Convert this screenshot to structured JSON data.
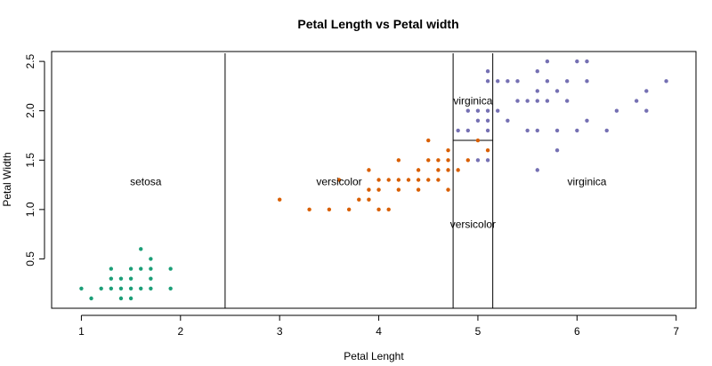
{
  "chart_data": {
    "type": "scatter",
    "title": "Petal Length vs Petal width",
    "xlabel": "Petal Lenght",
    "ylabel": "Petal Width",
    "xlim": [
      0.7,
      7.2
    ],
    "ylim": [
      0.0,
      2.6
    ],
    "x_ticks": [
      "1",
      "2",
      "3",
      "4",
      "5",
      "6",
      "7"
    ],
    "y_ticks": [
      "0.5",
      "1.0",
      "1.5",
      "2.0",
      "2.5"
    ],
    "grid": false,
    "legend": "none",
    "series": [
      {
        "color": "#1b9e77",
        "points": [
          [
            1.0,
            0.2
          ],
          [
            1.1,
            0.1
          ],
          [
            1.2,
            0.2
          ],
          [
            1.3,
            0.2
          ],
          [
            1.3,
            0.3
          ],
          [
            1.3,
            0.4
          ],
          [
            1.4,
            0.1
          ],
          [
            1.4,
            0.2
          ],
          [
            1.4,
            0.3
          ],
          [
            1.5,
            0.1
          ],
          [
            1.5,
            0.2
          ],
          [
            1.5,
            0.3
          ],
          [
            1.5,
            0.4
          ],
          [
            1.6,
            0.2
          ],
          [
            1.6,
            0.4
          ],
          [
            1.6,
            0.6
          ],
          [
            1.7,
            0.2
          ],
          [
            1.7,
            0.3
          ],
          [
            1.7,
            0.4
          ],
          [
            1.7,
            0.5
          ],
          [
            1.9,
            0.2
          ],
          [
            1.9,
            0.4
          ]
        ]
      },
      {
        "color": "#d95f02",
        "points": [
          [
            3.0,
            1.1
          ],
          [
            3.3,
            1.0
          ],
          [
            3.5,
            1.0
          ],
          [
            3.6,
            1.3
          ],
          [
            3.7,
            1.0
          ],
          [
            3.8,
            1.1
          ],
          [
            3.9,
            1.1
          ],
          [
            3.9,
            1.2
          ],
          [
            3.9,
            1.4
          ],
          [
            4.0,
            1.0
          ],
          [
            4.0,
            1.2
          ],
          [
            4.0,
            1.3
          ],
          [
            4.1,
            1.0
          ],
          [
            4.1,
            1.3
          ],
          [
            4.2,
            1.2
          ],
          [
            4.2,
            1.3
          ],
          [
            4.2,
            1.5
          ],
          [
            4.3,
            1.3
          ],
          [
            4.4,
            1.2
          ],
          [
            4.4,
            1.3
          ],
          [
            4.4,
            1.4
          ],
          [
            4.5,
            1.3
          ],
          [
            4.5,
            1.5
          ],
          [
            4.5,
            1.7
          ],
          [
            4.6,
            1.3
          ],
          [
            4.6,
            1.4
          ],
          [
            4.6,
            1.5
          ],
          [
            4.7,
            1.2
          ],
          [
            4.7,
            1.4
          ],
          [
            4.7,
            1.5
          ],
          [
            4.7,
            1.6
          ],
          [
            4.8,
            1.4
          ],
          [
            4.9,
            1.5
          ],
          [
            5.0,
            1.7
          ],
          [
            5.1,
            1.6
          ]
        ]
      },
      {
        "color": "#7570b3",
        "points": [
          [
            4.8,
            1.8
          ],
          [
            4.9,
            1.8
          ],
          [
            4.9,
            2.0
          ],
          [
            5.0,
            1.5
          ],
          [
            5.0,
            1.9
          ],
          [
            5.0,
            2.0
          ],
          [
            5.1,
            1.5
          ],
          [
            5.1,
            1.8
          ],
          [
            5.1,
            1.9
          ],
          [
            5.1,
            2.0
          ],
          [
            5.1,
            2.3
          ],
          [
            5.1,
            2.4
          ],
          [
            5.2,
            2.0
          ],
          [
            5.2,
            2.3
          ],
          [
            5.3,
            1.9
          ],
          [
            5.3,
            2.3
          ],
          [
            5.4,
            2.1
          ],
          [
            5.4,
            2.3
          ],
          [
            5.5,
            1.8
          ],
          [
            5.5,
            2.1
          ],
          [
            5.6,
            1.4
          ],
          [
            5.6,
            1.8
          ],
          [
            5.6,
            2.1
          ],
          [
            5.6,
            2.2
          ],
          [
            5.6,
            2.4
          ],
          [
            5.7,
            2.1
          ],
          [
            5.7,
            2.3
          ],
          [
            5.7,
            2.5
          ],
          [
            5.8,
            1.6
          ],
          [
            5.8,
            1.8
          ],
          [
            5.8,
            2.2
          ],
          [
            5.9,
            2.1
          ],
          [
            5.9,
            2.3
          ],
          [
            6.0,
            1.8
          ],
          [
            6.0,
            2.5
          ],
          [
            6.1,
            1.9
          ],
          [
            6.1,
            2.3
          ],
          [
            6.1,
            2.5
          ],
          [
            6.3,
            1.8
          ],
          [
            6.4,
            2.0
          ],
          [
            6.6,
            2.1
          ],
          [
            6.7,
            2.0
          ],
          [
            6.7,
            2.2
          ],
          [
            6.9,
            2.3
          ]
        ]
      }
    ],
    "partition_lines": [
      {
        "x": 2.45
      },
      {
        "x": 4.75
      },
      {
        "x": 5.15
      },
      {
        "x_from": 4.75,
        "x_to": 5.15,
        "y": 1.7
      }
    ],
    "region_labels": [
      {
        "text": "setosa",
        "x": 1.65,
        "y": 1.28
      },
      {
        "text": "versicolor",
        "x": 3.6,
        "y": 1.28
      },
      {
        "text": "virginica",
        "x": 4.95,
        "y": 2.1
      },
      {
        "text": "versicolor",
        "x": 4.95,
        "y": 0.85
      },
      {
        "text": "virginica",
        "x": 6.1,
        "y": 1.28
      }
    ]
  }
}
